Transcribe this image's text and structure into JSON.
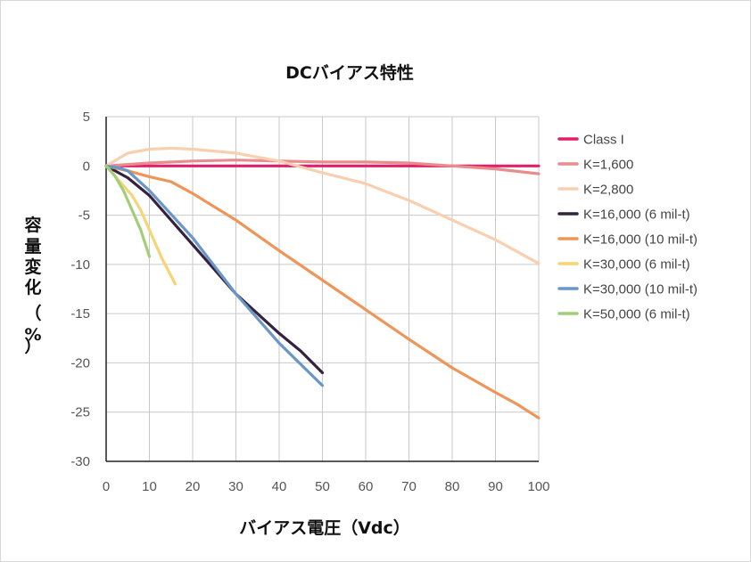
{
  "chart_data": {
    "type": "line",
    "title": "DCバイアス特性",
    "xlabel": "バイアス電圧（Vdc）",
    "ylabel_chars": [
      "容",
      "量",
      "変",
      "化",
      "（",
      "%",
      "）"
    ],
    "xlim": [
      0,
      100
    ],
    "ylim": [
      -30,
      5
    ],
    "xticks": [
      0,
      10,
      20,
      30,
      40,
      50,
      60,
      70,
      80,
      90,
      100
    ],
    "yticks": [
      5,
      0,
      -5,
      -10,
      -15,
      -20,
      -25,
      -30
    ],
    "grid": true,
    "legend_position": "right",
    "series": [
      {
        "name": "Class I",
        "color": "#e0206a",
        "x": [
          0,
          10,
          20,
          30,
          40,
          50,
          60,
          70,
          80,
          90,
          100
        ],
        "y": [
          0,
          0,
          0,
          0,
          0,
          0,
          0,
          0,
          0,
          0,
          0
        ]
      },
      {
        "name": "K=1,600",
        "color": "#ea8c8e",
        "x": [
          0,
          10,
          20,
          30,
          40,
          50,
          60,
          70,
          80,
          90,
          100
        ],
        "y": [
          0,
          0.3,
          0.5,
          0.6,
          0.5,
          0.4,
          0.4,
          0.3,
          0,
          -0.3,
          -0.8
        ]
      },
      {
        "name": "K=2,800",
        "color": "#f8d0b0",
        "x": [
          0,
          5,
          10,
          15,
          20,
          30,
          40,
          50,
          60,
          70,
          80,
          90,
          100
        ],
        "y": [
          0,
          1.3,
          1.7,
          1.8,
          1.7,
          1.3,
          0.5,
          -0.7,
          -1.8,
          -3.5,
          -5.5,
          -7.5,
          -9.9
        ]
      },
      {
        "name": "K=16,000 (6 mil-t)",
        "color": "#35223f",
        "x": [
          0,
          5,
          10,
          20,
          30,
          40,
          45,
          50
        ],
        "y": [
          0,
          -1.2,
          -3,
          -8,
          -13,
          -17,
          -18.8,
          -21
        ]
      },
      {
        "name": "K=16,000 (10 mil-t)",
        "color": "#ee9559",
        "x": [
          0,
          5,
          10,
          15,
          20,
          30,
          40,
          50,
          60,
          70,
          80,
          90,
          95,
          100
        ],
        "y": [
          0,
          -0.5,
          -1.1,
          -1.6,
          -2.8,
          -5.5,
          -8.6,
          -11.6,
          -14.6,
          -17.6,
          -20.5,
          -23,
          -24.2,
          -25.6
        ]
      },
      {
        "name": "K=30,000 (6 mil-t)",
        "color": "#f7d476",
        "x": [
          0,
          3,
          6,
          8,
          10,
          13,
          16
        ],
        "y": [
          0,
          -1.5,
          -3,
          -4.5,
          -6.5,
          -9.5,
          -12
        ]
      },
      {
        "name": "K=30,000 (10 mil-t)",
        "color": "#6b96c8",
        "x": [
          0,
          3,
          5,
          10,
          20,
          30,
          40,
          50
        ],
        "y": [
          0,
          -0.2,
          -0.5,
          -2.5,
          -7.3,
          -13,
          -18,
          -22.3
        ]
      },
      {
        "name": "K=50,000 (6 mil-t)",
        "color": "#a3cd7b",
        "x": [
          0,
          2,
          4,
          6,
          8,
          10
        ],
        "y": [
          0,
          -1,
          -2.5,
          -4.5,
          -6.5,
          -9.2
        ]
      }
    ]
  }
}
